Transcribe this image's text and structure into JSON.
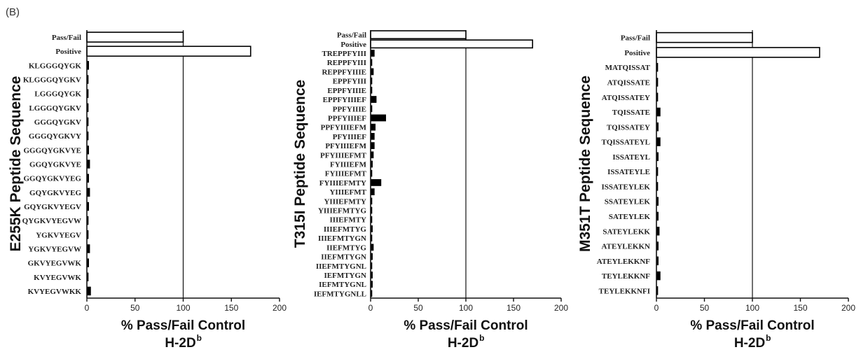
{
  "figure_label": "(B)",
  "chart_data": [
    {
      "type": "bar",
      "orientation": "horizontal",
      "ylabel": "E255K Peptide Sequence",
      "xlabel": "% Pass/Fail Control",
      "xlabel_sub": "H-2D",
      "xlabel_sub_sup": "b",
      "xlim": [
        0,
        200
      ],
      "xticks": [
        0,
        50,
        100,
        150,
        200
      ],
      "reference_line": 100,
      "categories": [
        "Pass/Fail",
        "Positive",
        "KLGGGQYGK",
        "KLGGGQYGKV",
        "LGGGQYGK",
        "LGGGQYGKV",
        "GGGQYGKV",
        "GGGQYGKVY",
        "GGGQYGKVYE",
        "GGQYGKVYE",
        "GGQYGKVYEG",
        "GQYGKVYEG",
        "GQYGKVYEGV",
        "QYGKVYEGVW",
        "YGKVYEGV",
        "YGKVYEGVW",
        "GKVYEGVWK",
        "KVYEGVWK",
        "KVYEGVWKK"
      ],
      "values": [
        100,
        170,
        2,
        1.5,
        1.5,
        1.5,
        1.5,
        1.5,
        2,
        3,
        2,
        3,
        2,
        1.5,
        1.5,
        3,
        2,
        1.5,
        4
      ],
      "open_bars": [
        "Pass/Fail",
        "Positive"
      ]
    },
    {
      "type": "bar",
      "orientation": "horizontal",
      "ylabel": "T315I Peptide Sequence",
      "xlabel": "% Pass/Fail Control",
      "xlabel_sub": "H-2D",
      "xlabel_sub_sup": "b",
      "xlim": [
        0,
        200
      ],
      "xticks": [
        0,
        50,
        100,
        150,
        200
      ],
      "reference_line": 100,
      "categories": [
        "Pass/Fail",
        "Positive",
        "TREPPFYIII",
        "REPPFYIII",
        "REPPFYIIIE",
        "EPPFYIII",
        "EPPFYIIIE",
        "EPPFYIIIEF",
        "PPFYIIIE",
        "PPFYIIIEF",
        "PPFYIIIEFM",
        "PFYIIIEF",
        "PFYIIIEFM",
        "PFYIIIEFMT",
        "FYIIIEFM",
        "FYIIIEFMT",
        "FYIIIEFMTY",
        "YIIIEFMT",
        "YIIIEFMTY",
        "YIIIEFMTYG",
        "IIIEFMTY",
        "IIIEFMTYG",
        "IIIEFMTYGN",
        "IIEFMTYG",
        "IIEFMTYGN",
        "IIEFMTYGNL",
        "IEFMTYGN",
        "IEFMTYGNL",
        "IEFMTYGNLL"
      ],
      "values": [
        100,
        170,
        4,
        1.5,
        3,
        1.5,
        1.5,
        6,
        1.5,
        16,
        5,
        4,
        4,
        3,
        2,
        1.5,
        11,
        4,
        1.5,
        1.5,
        1.5,
        2,
        1.5,
        3,
        2,
        1.5,
        2,
        2,
        1.5
      ],
      "open_bars": [
        "Pass/Fail",
        "Positive"
      ]
    },
    {
      "type": "bar",
      "orientation": "horizontal",
      "ylabel": "M351T Peptide Sequence",
      "xlabel": "% Pass/Fail Control",
      "xlabel_sub": "H-2D",
      "xlabel_sub_sup": "b",
      "xlim": [
        0,
        200
      ],
      "xticks": [
        0,
        50,
        100,
        150,
        200
      ],
      "reference_line": 100,
      "categories": [
        "Pass/Fail",
        "Positive",
        "MATQISSAT",
        "ATQISSATE",
        "ATQISSATEY",
        "TQISSATE",
        "TQISSATEY",
        "TQISSATEYL",
        "ISSATEYL",
        "ISSATEYLE",
        "ISSATEYLEK",
        "SSATEYLEK",
        "SATEYLEK",
        "SATEYLEKK",
        "ATEYLEKKN",
        "ATEYLEKKNF",
        "TEYLEKKNF",
        "TEYLEKKNFI"
      ],
      "values": [
        100,
        170,
        1.5,
        1.5,
        1.5,
        4,
        2,
        4,
        2,
        1.5,
        1.5,
        2,
        2,
        3,
        2,
        2,
        4,
        1.5
      ],
      "open_bars": [
        "Pass/Fail",
        "Positive"
      ]
    }
  ]
}
